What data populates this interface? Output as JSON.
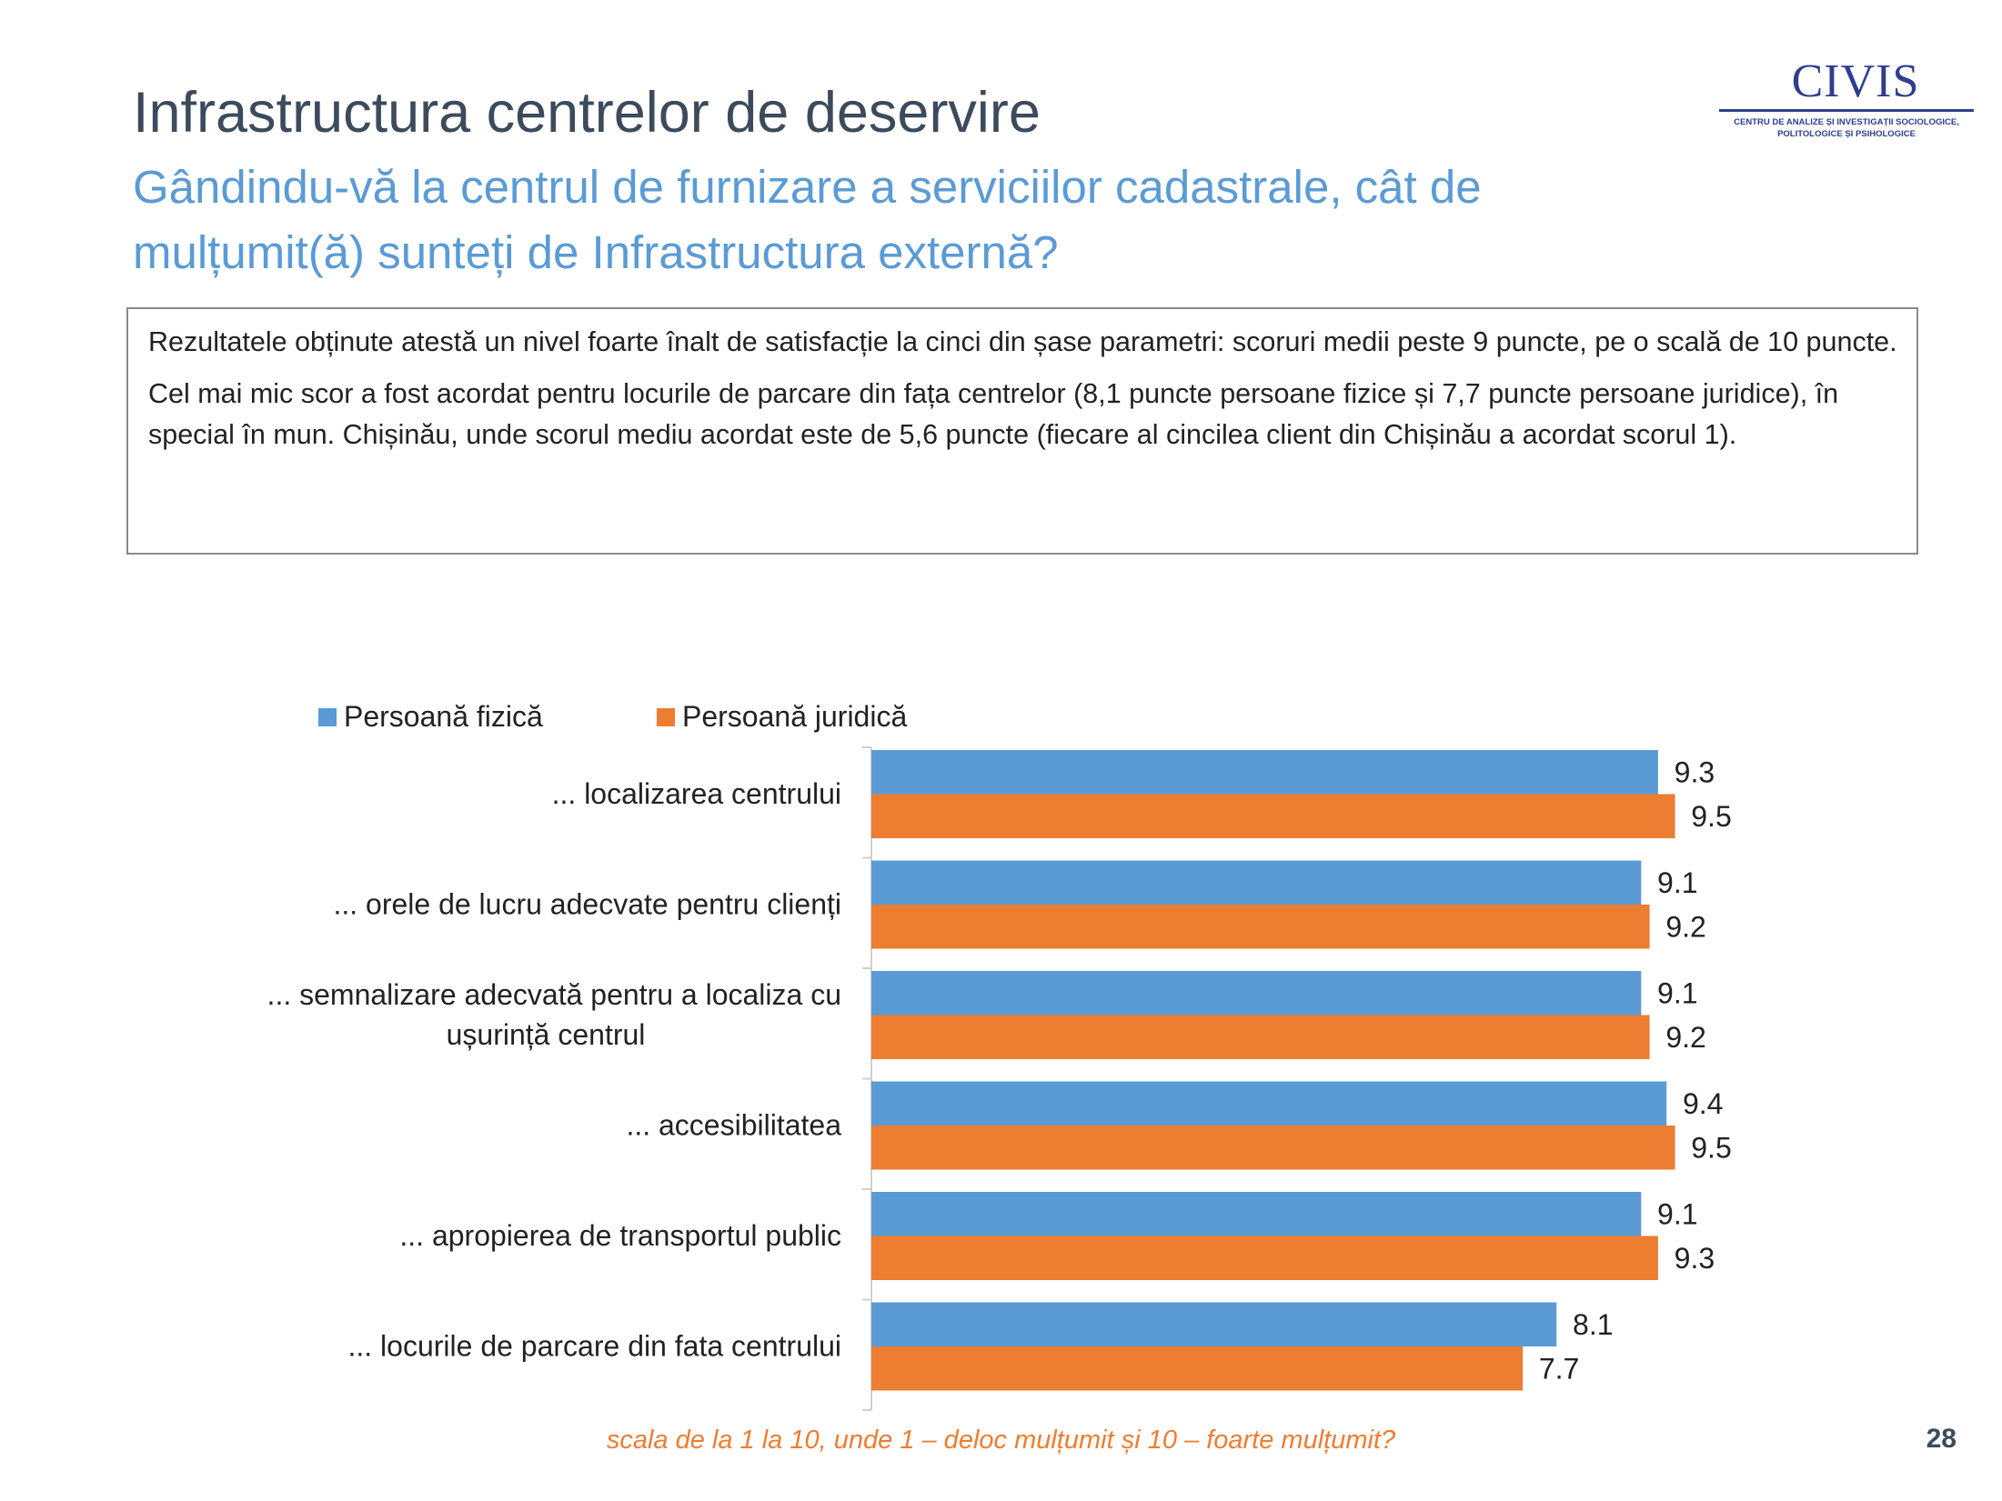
{
  "slide": {
    "title": "Infrastructura centrelor de deservire",
    "subtitle": "Gândindu-vă la centrul de furnizare a serviciilor cadastrale, cât de mulțumit(ă) sunteți de Infrastructura externă?",
    "page_number": "28"
  },
  "logo": {
    "name": "CIVIS",
    "tagline_line1": "CENTRU DE ANALIZE ȘI INVESTIGAȚII SOCIOLOGICE,",
    "tagline_line2": "POLITOLOGICE ȘI PSIHOLOGICE",
    "color": "#2e3e8f"
  },
  "summary": {
    "paragraph1": "Rezultatele obținute atestă un nivel foarte înalt de satisfacție la cinci din șase parametri: scoruri medii peste 9 puncte, pe o scală de 10 puncte.",
    "paragraph2": "Cel mai mic scor a fost acordat pentru locurile de parcare din fața centrelor (8,1 puncte persoane fizice și 7,7 puncte persoane juridice), în special în mun. Chișinău, unde scorul mediu acordat este de 5,6 puncte (fiecare al cincilea client din Chișinău a acordat scorul 1)."
  },
  "chart_data": {
    "type": "bar",
    "orientation": "horizontal",
    "categories": [
      "... localizarea centrului",
      "...  orele de lucru adecvate pentru clienți",
      "... semnalizare adecvată pentru a localiza cu ușurință centrul",
      "... accesibilitatea",
      "... apropierea de transportul public",
      "... locurile de parcare din fata centrului"
    ],
    "series": [
      {
        "name": "Persoană fizică",
        "color": "#5b9bd5",
        "values": [
          9.3,
          9.1,
          9.1,
          9.4,
          9.1,
          8.1
        ]
      },
      {
        "name": "Persoană juridică",
        "color": "#ed7d31",
        "values": [
          9.5,
          9.2,
          9.2,
          9.5,
          9.3,
          7.7
        ]
      }
    ],
    "xlim": [
      0,
      10
    ],
    "grid": false,
    "legend_position": "top-left",
    "data_labels": true,
    "footnote": "scala de la 1 la 10, unde 1 – deloc mulțumit și 10 – foarte mulțumit?"
  }
}
